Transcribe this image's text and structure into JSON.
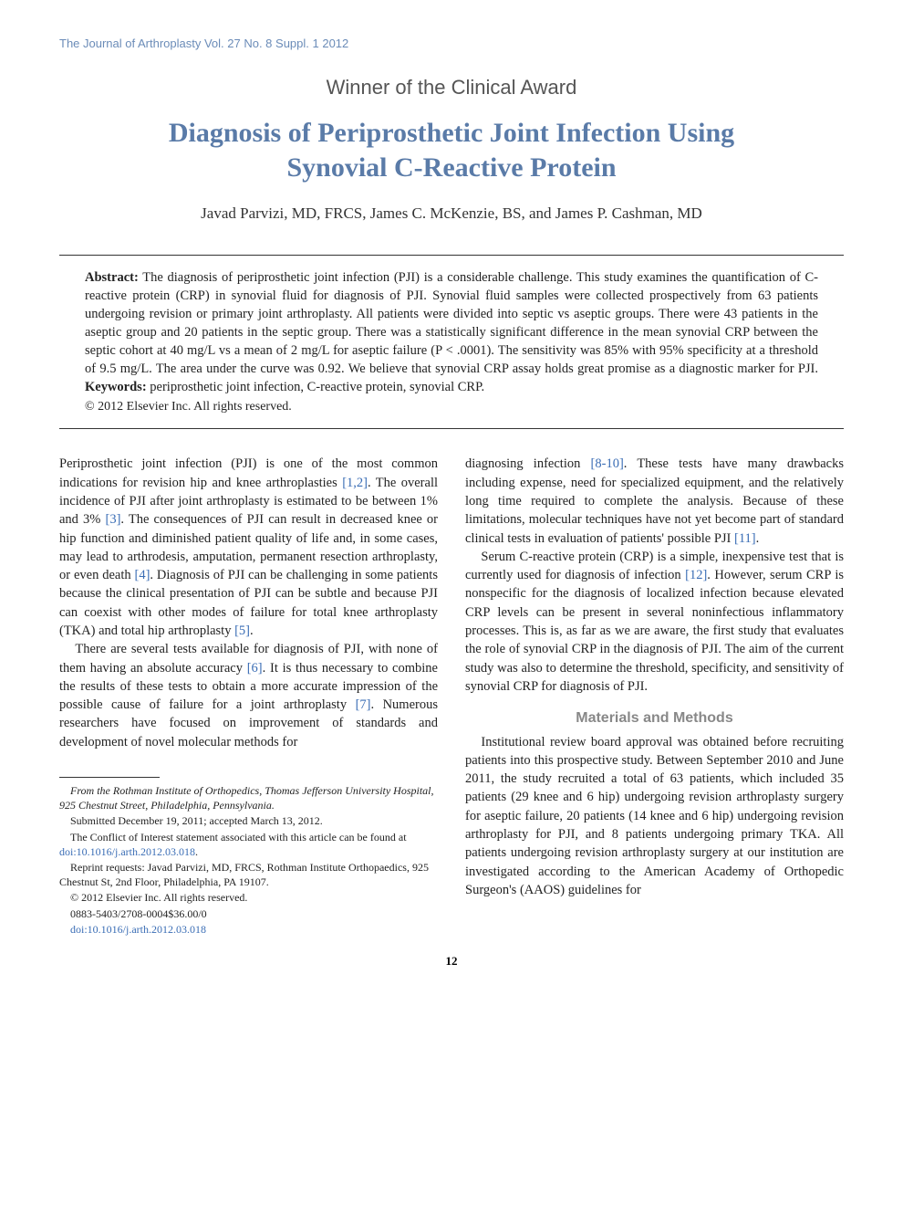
{
  "journal_header": "The Journal of Arthroplasty Vol. 27 No. 8 Suppl. 1 2012",
  "award": "Winner of the Clinical Award",
  "title_line1": "Diagnosis of Periprosthetic Joint Infection Using",
  "title_line2": "Synovial C-Reactive Protein",
  "authors": "Javad Parvizi, MD, FRCS, James C. McKenzie, BS, and James P. Cashman, MD",
  "abstract_label": "Abstract:",
  "abstract_text": " The diagnosis of periprosthetic joint infection (PJI) is a considerable challenge. This study examines the quantification of C-reactive protein (CRP) in synovial fluid for diagnosis of PJI. Synovial fluid samples were collected prospectively from 63 patients undergoing revision or primary joint arthroplasty. All patients were divided into septic vs aseptic groups. There were 43 patients in the aseptic group and 20 patients in the septic group. There was a statistically significant difference in the mean synovial CRP between the septic cohort at 40 mg/L vs a mean of 2 mg/L for aseptic failure (P < .0001). The sensitivity was 85% with 95% specificity at a threshold of 9.5 mg/L. The area under the curve was 0.92. We believe that synovial CRP assay holds great promise as a diagnostic marker for PJI. ",
  "keywords_label": "Keywords:",
  "keywords_text": " periprosthetic joint infection, C-reactive protein, synovial CRP.",
  "abstract_copyright": "© 2012 Elsevier Inc. All rights reserved.",
  "body": {
    "p1a": "Periprosthetic joint infection (PJI) is one of the most common indications for revision hip and knee arthroplasties ",
    "r1": "[1,2]",
    "p1b": ". The overall incidence of PJI after joint arthroplasty is estimated to be between 1% and 3% ",
    "r2": "[3]",
    "p1c": ". The consequences of PJI can result in decreased knee or hip function and diminished patient quality of life and, in some cases, may lead to arthrodesis, amputation, permanent resection arthroplasty, or even death ",
    "r3": "[4]",
    "p1d": ". Diagnosis of PJI can be challenging in some patients because the clinical presentation of PJI can be subtle and because PJI can coexist with other modes of failure for total knee arthroplasty (TKA) and total hip arthroplasty ",
    "r4": "[5]",
    "p1e": ".",
    "p2a": "There are several tests available for diagnosis of PJI, with none of them having an absolute accuracy ",
    "r5": "[6]",
    "p2b": ". It is thus necessary to combine the results of these tests to obtain a more accurate impression of the possible cause of failure for a joint arthroplasty ",
    "r6": "[7]",
    "p2c": ". Numerous researchers have focused on improvement of standards and development of novel molecular methods for ",
    "p3a": "diagnosing infection ",
    "r7": "[8-10]",
    "p3b": ". These tests have many drawbacks including expense, need for specialized equipment, and the relatively long time required to complete the analysis. Because of these limitations, molecular techniques have not yet become part of standard clinical tests in evaluation of patients' possible PJI ",
    "r8": "[11]",
    "p3c": ".",
    "p4a": "Serum C-reactive protein (CRP) is a simple, inexpensive test that is currently used for diagnosis of infection ",
    "r9": "[12]",
    "p4b": ". However, serum CRP is nonspecific for the diagnosis of localized infection because elevated CRP levels can be present in several noninfectious inflammatory processes. This is, as far as we are aware, the first study that evaluates the role of synovial CRP in the diagnosis of PJI. The aim of the current study was also to determine the threshold, specificity, and sensitivity of synovial CRP for diagnosis of PJI.",
    "section_mm": "Materials and Methods",
    "p5": "Institutional review board approval was obtained before recruiting patients into this prospective study. Between September 2010 and June 2011, the study recruited a total of 63 patients, which included 35 patients (29 knee and 6 hip) undergoing revision arthroplasty surgery for aseptic failure, 20 patients (14 knee and 6 hip) undergoing revision arthroplasty for PJI, and 8 patients undergoing primary TKA. All patients undergoing revision arthroplasty surgery at our institution are investigated according to the American Academy of Orthopedic Surgeon's (AAOS) guidelines for"
  },
  "footnotes": {
    "f1": "From the Rothman Institute of Orthopedics, Thomas Jefferson University Hospital, 925 Chestnut Street, Philadelphia, Pennsylvania.",
    "f2": "Submitted December 19, 2011; accepted March 13, 2012.",
    "f3a": "The Conflict of Interest statement associated with this article can be found at ",
    "f3doi": "doi:10.1016/j.arth.2012.03.018",
    "f3b": ".",
    "f4": "Reprint requests: Javad Parvizi, MD, FRCS, Rothman Institute Orthopaedics, 925 Chestnut St, 2nd Floor, Philadelphia, PA 19107.",
    "f5": "© 2012 Elsevier Inc. All rights reserved.",
    "f6": "0883-5403/2708-0004$36.00/0",
    "f7": "doi:10.1016/j.arth.2012.03.018"
  },
  "page_number": "12",
  "colors": {
    "header_blue": "#6b8cb8",
    "title_blue": "#5a7ba8",
    "ref_blue": "#3a6db5",
    "section_gray": "#888888",
    "text": "#222222"
  },
  "fonts": {
    "body_size_pt": 10.5,
    "title_size_pt": 22,
    "award_size_pt": 16,
    "authors_size_pt": 12,
    "footnote_size_pt": 8.5
  }
}
